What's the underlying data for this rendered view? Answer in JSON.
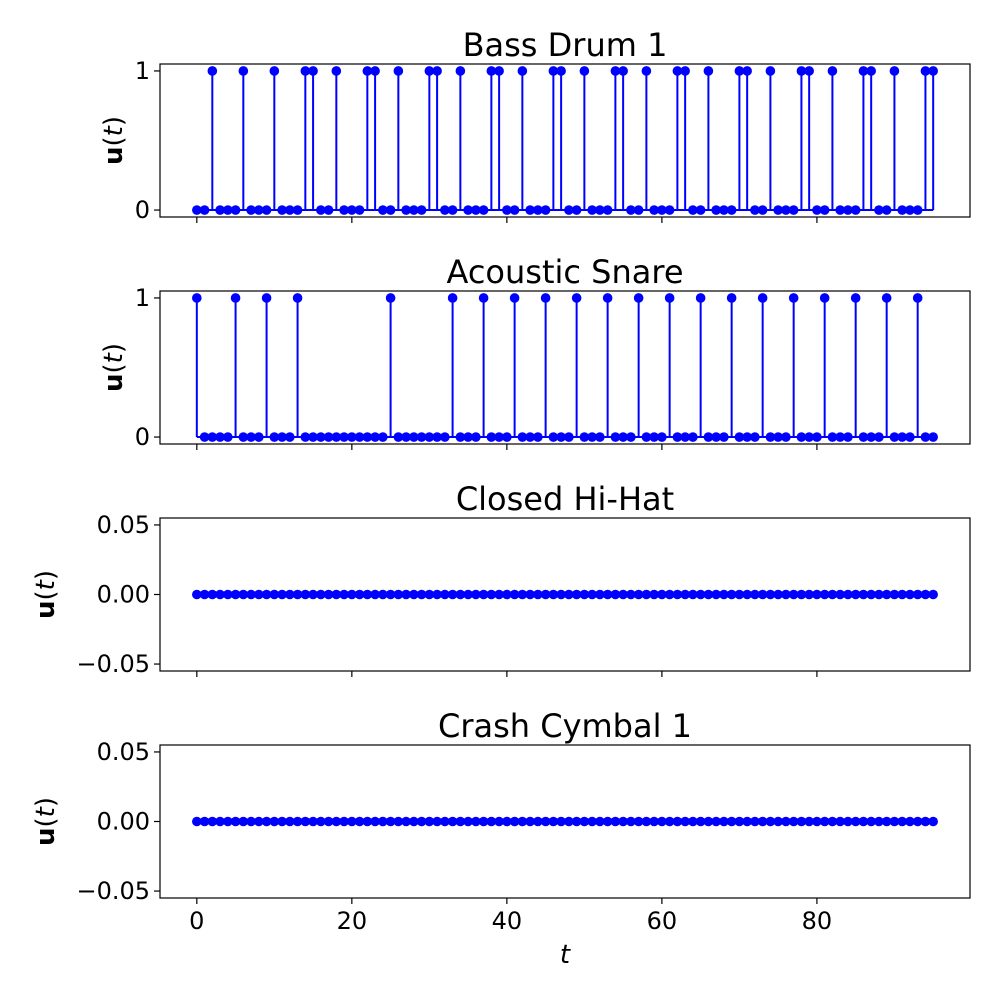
{
  "chart_data": [
    {
      "type": "stem",
      "title": "Bass Drum 1",
      "ylabel": "u(t)",
      "ylabel_display": {
        "bold": "u",
        "rest": "(",
        "var": "t",
        "close": ")"
      },
      "xlabel": "",
      "xlim": [
        -4.75,
        99.75
      ],
      "ylim": [
        -0.05,
        1.05
      ],
      "yticks": [
        0,
        1
      ],
      "ytick_labels": [
        "0",
        "1"
      ],
      "xticks": [
        0,
        20,
        40,
        60,
        80
      ],
      "xtick_labels": [
        "",
        "",
        "",
        "",
        ""
      ],
      "x_start": 0,
      "values": [
        0,
        0,
        1,
        0,
        0,
        0,
        1,
        0,
        0,
        0,
        1,
        0,
        0,
        0,
        1,
        1,
        0,
        0,
        1,
        0,
        0,
        0,
        1,
        1,
        0,
        0,
        1,
        0,
        0,
        0,
        1,
        1,
        0,
        0,
        1,
        0,
        0,
        0,
        1,
        1,
        0,
        0,
        1,
        0,
        0,
        0,
        1,
        1,
        0,
        0,
        1,
        0,
        0,
        0,
        1,
        1,
        0,
        0,
        1,
        0,
        0,
        0,
        1,
        1,
        0,
        0,
        1,
        0,
        0,
        0,
        1,
        1,
        0,
        0,
        1,
        0,
        0,
        0,
        1,
        1,
        0,
        0,
        1,
        0,
        0,
        0,
        1,
        1,
        0,
        0,
        1,
        0,
        0,
        0,
        1,
        1
      ],
      "color": "#0000ff",
      "grid": false
    },
    {
      "type": "stem",
      "title": "Acoustic Snare",
      "ylabel": "u(t)",
      "ylabel_display": {
        "bold": "u",
        "rest": "(",
        "var": "t",
        "close": ")"
      },
      "xlabel": "",
      "xlim": [
        -4.75,
        99.75
      ],
      "ylim": [
        -0.05,
        1.05
      ],
      "yticks": [
        0,
        1
      ],
      "ytick_labels": [
        "0",
        "1"
      ],
      "xticks": [
        0,
        20,
        40,
        60,
        80
      ],
      "xtick_labels": [
        "",
        "",
        "",
        "",
        ""
      ],
      "x_start": 0,
      "values": [
        1,
        0,
        0,
        0,
        0,
        1,
        0,
        0,
        0,
        1,
        0,
        0,
        0,
        1,
        0,
        0,
        0,
        0,
        0,
        0,
        0,
        0,
        0,
        0,
        0,
        1,
        0,
        0,
        0,
        0,
        0,
        0,
        0,
        1,
        0,
        0,
        0,
        1,
        0,
        0,
        0,
        1,
        0,
        0,
        0,
        1,
        0,
        0,
        0,
        1,
        0,
        0,
        0,
        1,
        0,
        0,
        0,
        1,
        0,
        0,
        0,
        1,
        0,
        0,
        0,
        1,
        0,
        0,
        0,
        1,
        0,
        0,
        0,
        1,
        0,
        0,
        0,
        1,
        0,
        0,
        0,
        1,
        0,
        0,
        0,
        1,
        0,
        0,
        0,
        1,
        0,
        0,
        0,
        1,
        0,
        0
      ],
      "color": "#0000ff",
      "grid": false
    },
    {
      "type": "stem",
      "title": "Closed Hi-Hat",
      "ylabel": "u(t)",
      "ylabel_display": {
        "bold": "u",
        "rest": "(",
        "var": "t",
        "close": ")"
      },
      "xlabel": "",
      "xlim": [
        -4.75,
        99.75
      ],
      "ylim": [
        -0.055,
        0.055
      ],
      "yticks": [
        0.05,
        0,
        -0.05
      ],
      "ytick_labels": [
        "0.05",
        "0.00",
        "−0.05"
      ],
      "xticks": [
        0,
        20,
        40,
        60,
        80
      ],
      "xtick_labels": [
        "",
        "",
        "",
        "",
        ""
      ],
      "x_start": 0,
      "values": [
        0,
        0,
        0,
        0,
        0,
        0,
        0,
        0,
        0,
        0,
        0,
        0,
        0,
        0,
        0,
        0,
        0,
        0,
        0,
        0,
        0,
        0,
        0,
        0,
        0,
        0,
        0,
        0,
        0,
        0,
        0,
        0,
        0,
        0,
        0,
        0,
        0,
        0,
        0,
        0,
        0,
        0,
        0,
        0,
        0,
        0,
        0,
        0,
        0,
        0,
        0,
        0,
        0,
        0,
        0,
        0,
        0,
        0,
        0,
        0,
        0,
        0,
        0,
        0,
        0,
        0,
        0,
        0,
        0,
        0,
        0,
        0,
        0,
        0,
        0,
        0,
        0,
        0,
        0,
        0,
        0,
        0,
        0,
        0,
        0,
        0,
        0,
        0,
        0,
        0,
        0,
        0,
        0,
        0,
        0,
        0
      ],
      "color": "#0000ff",
      "grid": false
    },
    {
      "type": "stem",
      "title": "Crash Cymbal 1",
      "ylabel": "u(t)",
      "ylabel_display": {
        "bold": "u",
        "rest": "(",
        "var": "t",
        "close": ")"
      },
      "xlabel": "t",
      "xlim": [
        -4.75,
        99.75
      ],
      "ylim": [
        -0.055,
        0.055
      ],
      "yticks": [
        0.05,
        0,
        -0.05
      ],
      "ytick_labels": [
        "0.05",
        "0.00",
        "−0.05"
      ],
      "xticks": [
        0,
        20,
        40,
        60,
        80
      ],
      "xtick_labels": [
        "0",
        "20",
        "40",
        "60",
        "80"
      ],
      "x_start": 0,
      "values": [
        0,
        0,
        0,
        0,
        0,
        0,
        0,
        0,
        0,
        0,
        0,
        0,
        0,
        0,
        0,
        0,
        0,
        0,
        0,
        0,
        0,
        0,
        0,
        0,
        0,
        0,
        0,
        0,
        0,
        0,
        0,
        0,
        0,
        0,
        0,
        0,
        0,
        0,
        0,
        0,
        0,
        0,
        0,
        0,
        0,
        0,
        0,
        0,
        0,
        0,
        0,
        0,
        0,
        0,
        0,
        0,
        0,
        0,
        0,
        0,
        0,
        0,
        0,
        0,
        0,
        0,
        0,
        0,
        0,
        0,
        0,
        0,
        0,
        0,
        0,
        0,
        0,
        0,
        0,
        0,
        0,
        0,
        0,
        0,
        0,
        0,
        0,
        0,
        0,
        0,
        0,
        0,
        0,
        0,
        0,
        0
      ],
      "color": "#0000ff",
      "grid": false
    }
  ]
}
